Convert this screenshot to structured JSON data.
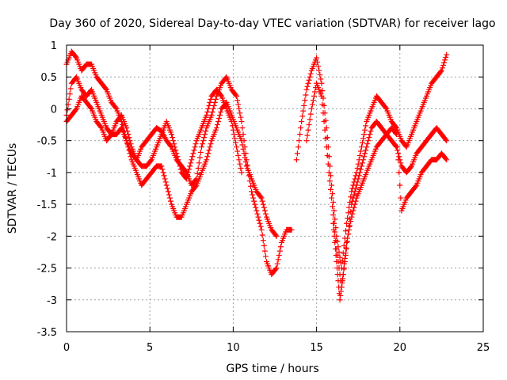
{
  "chart_data": {
    "type": "scatter",
    "title": "Day 360 of 2020, Sidereal Day-to-day VTEC variation (SDTVAR) for receiver lago",
    "xlabel": "GPS time / hours",
    "ylabel": "SDTVAR / TECUs",
    "xlim": [
      0,
      25
    ],
    "ylim": [
      -3.5,
      1
    ],
    "xticks": [
      0,
      5,
      10,
      15,
      20,
      25
    ],
    "yticks": [
      1,
      0.5,
      0,
      -0.5,
      -1,
      -1.5,
      -2,
      -2.5,
      -3,
      -3.5
    ],
    "grid": true,
    "marker": "plus",
    "color": "#ff0000",
    "series": [
      {
        "x": [
          0.0,
          0.3,
          0.6,
          0.9,
          1.2,
          1.5,
          1.8,
          2.1,
          2.4,
          2.7,
          3.0,
          3.3,
          3.6,
          3.9,
          4.2,
          4.5,
          4.8,
          5.1,
          5.4,
          5.7,
          6.0,
          6.3,
          6.6,
          6.9,
          7.2,
          7.5,
          7.8,
          8.1,
          8.4,
          8.7,
          9.0,
          9.3,
          9.6,
          9.9,
          10.2,
          10.5,
          10.8,
          11.1,
          11.4,
          11.7,
          12.0,
          12.3,
          12.6,
          12.9,
          13.2,
          13.5
        ],
        "y": [
          0.7,
          0.9,
          0.8,
          0.6,
          0.7,
          0.7,
          0.5,
          0.4,
          0.3,
          0.1,
          0.0,
          -0.2,
          -0.5,
          -0.7,
          -0.8,
          -0.6,
          -0.5,
          -0.4,
          -0.3,
          -0.35,
          -0.5,
          -0.6,
          -0.8,
          -0.9,
          -1.0,
          -1.2,
          -1.1,
          -0.6,
          -0.3,
          -0.1,
          0.2,
          0.4,
          0.5,
          0.3,
          0.2,
          -0.2,
          -0.8,
          -1.3,
          -1.6,
          -1.9,
          -2.4,
          -2.6,
          -2.5,
          -2.1,
          -1.9,
          -1.9
        ]
      },
      {
        "x": [
          0.0,
          0.3,
          0.6,
          0.9,
          1.2,
          1.5,
          1.8,
          2.1,
          2.4,
          2.7,
          3.0,
          3.3,
          3.6,
          3.9,
          4.2,
          4.5,
          4.8,
          5.1,
          5.4,
          5.7,
          6.0,
          6.3,
          6.6,
          6.9,
          7.2,
          7.5,
          7.8,
          8.1,
          8.4,
          8.7,
          9.0,
          9.3,
          9.6,
          9.9,
          10.2,
          10.5,
          10.8,
          11.1,
          11.4,
          11.7,
          12.0,
          12.3,
          12.6
        ],
        "y": [
          -0.1,
          0.4,
          0.5,
          0.3,
          0.2,
          0.3,
          0.1,
          -0.1,
          -0.3,
          -0.4,
          -0.4,
          -0.3,
          -0.5,
          -0.8,
          -1.0,
          -1.2,
          -1.1,
          -1.0,
          -0.9,
          -0.9,
          -1.2,
          -1.5,
          -1.7,
          -1.7,
          -1.5,
          -1.3,
          -1.2,
          -1.0,
          -0.8,
          -0.5,
          -0.3,
          0.0,
          0.1,
          -0.1,
          -0.3,
          -0.5,
          -0.9,
          -1.1,
          -1.3,
          -1.4,
          -1.7,
          -1.9,
          -2.0
        ]
      },
      {
        "x": [
          0.0,
          0.3,
          0.6,
          0.9,
          1.2,
          1.5,
          1.8,
          2.1,
          2.4,
          2.7,
          3.0,
          3.3,
          3.6,
          3.9,
          4.2,
          4.5,
          4.8,
          5.1,
          5.4,
          5.7,
          6.0,
          6.3,
          6.6,
          6.9,
          7.2,
          7.5,
          7.8,
          8.1,
          8.4,
          8.7,
          9.0,
          9.3,
          9.6,
          9.9,
          10.2,
          10.5
        ],
        "y": [
          -0.2,
          -0.1,
          0.0,
          0.2,
          0.1,
          0.0,
          -0.2,
          -0.3,
          -0.5,
          -0.4,
          -0.2,
          -0.1,
          -0.3,
          -0.6,
          -0.8,
          -0.9,
          -0.9,
          -0.8,
          -0.6,
          -0.4,
          -0.2,
          -0.4,
          -0.7,
          -1.0,
          -1.1,
          -0.8,
          -0.5,
          -0.3,
          -0.1,
          0.2,
          0.3,
          0.2,
          0.0,
          -0.2,
          -0.6,
          -1.0
        ]
      },
      {
        "x": [
          13.8,
          14.1,
          14.4,
          14.7,
          15.0,
          15.3,
          15.6,
          15.9,
          16.2,
          16.5,
          16.8,
          17.1,
          17.4,
          17.7,
          18.0,
          18.3,
          18.6,
          18.9,
          19.2,
          19.5,
          19.8,
          20.1,
          20.4,
          20.7,
          21.0,
          21.3,
          21.6,
          21.9,
          22.2,
          22.5,
          22.8
        ],
        "y": [
          -0.8,
          -0.2,
          0.3,
          0.6,
          0.8,
          0.4,
          -0.3,
          -1.2,
          -2.0,
          -2.5,
          -1.8,
          -1.3,
          -1.0,
          -0.6,
          -0.2,
          0.0,
          0.2,
          0.1,
          0.0,
          -0.2,
          -0.3,
          -0.5,
          -0.6,
          -0.4,
          -0.2,
          0.0,
          0.2,
          0.4,
          0.5,
          0.6,
          0.85
        ]
      },
      {
        "x": [
          14.4,
          14.7,
          15.0,
          15.3,
          15.6,
          15.9,
          16.2,
          16.5,
          16.8,
          17.1,
          17.4,
          17.7,
          18.0,
          18.3,
          18.6,
          18.9,
          19.2,
          19.5,
          19.8,
          20.1,
          20.4,
          20.7,
          21.0,
          21.3,
          21.6,
          21.9,
          22.2,
          22.5,
          22.8
        ],
        "y": [
          -0.5,
          0.0,
          0.4,
          0.2,
          -0.6,
          -1.4,
          -2.2,
          -2.8,
          -2.2,
          -1.5,
          -1.2,
          -0.9,
          -0.6,
          -0.3,
          -0.2,
          -0.3,
          -0.4,
          -0.5,
          -0.6,
          -0.9,
          -1.0,
          -0.9,
          -0.7,
          -0.6,
          -0.5,
          -0.4,
          -0.3,
          -0.4,
          -0.5
        ]
      },
      {
        "x": [
          16.0,
          16.2,
          16.4,
          16.6,
          16.8,
          17.1,
          17.4,
          17.7,
          18.0,
          18.3,
          18.6,
          18.9,
          19.2,
          19.5,
          19.8,
          20.1,
          20.4,
          20.7,
          21.0,
          21.3,
          21.6,
          21.9,
          22.2,
          22.5,
          22.8
        ],
        "y": [
          -1.8,
          -2.4,
          -3.0,
          -2.6,
          -2.1,
          -1.7,
          -1.4,
          -1.2,
          -1.0,
          -0.8,
          -0.6,
          -0.5,
          -0.4,
          -0.3,
          -0.4,
          -1.6,
          -1.4,
          -1.3,
          -1.2,
          -1.0,
          -0.9,
          -0.8,
          -0.8,
          -0.7,
          -0.8
        ]
      }
    ]
  }
}
